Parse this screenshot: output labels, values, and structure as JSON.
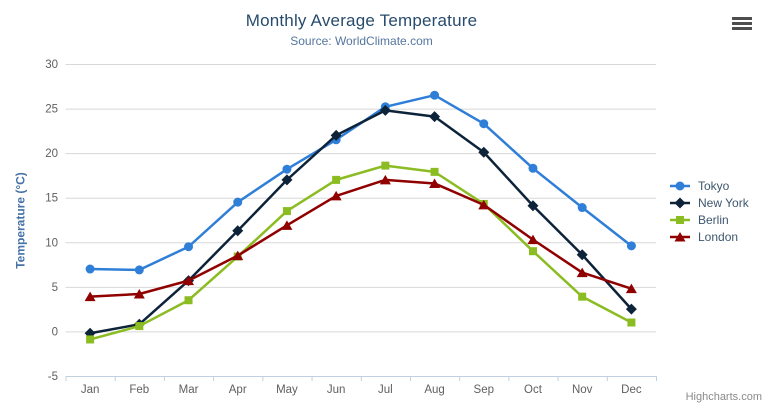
{
  "header": {
    "title": "Monthly Average Temperature",
    "subtitle": "Source: WorldClimate.com"
  },
  "toolbar": {
    "export_menu_icon": "hamburger-icon"
  },
  "credits": {
    "label": "Highcharts.com"
  },
  "colors": {
    "title_text": "#274b6d",
    "subtitle_text": "#55759e",
    "axis_label_text": "#606060",
    "yaxis_title_text": "#4572a7",
    "legend_text": "#3e576f",
    "grid_line": "#d8d8d8",
    "axis_line": "#c0d0e0",
    "credits_text": "#8a8a8a",
    "menu_icon": "#4d4d4d"
  },
  "chart_data": {
    "type": "line",
    "title": "Monthly Average Temperature",
    "subtitle": "Source: WorldClimate.com",
    "categories": [
      "Jan",
      "Feb",
      "Mar",
      "Apr",
      "May",
      "Jun",
      "Jul",
      "Aug",
      "Sep",
      "Oct",
      "Nov",
      "Dec"
    ],
    "xlabel": "",
    "ylabel": "Temperature (°C)",
    "ylim": [
      -5,
      30
    ],
    "yticks": [
      -5,
      0,
      5,
      10,
      15,
      20,
      25,
      30
    ],
    "grid": true,
    "legend_position": "right",
    "series": [
      {
        "name": "Tokyo",
        "color": "#2f7ed8",
        "marker": "circle",
        "values": [
          7.0,
          6.9,
          9.5,
          14.5,
          18.2,
          21.5,
          25.2,
          26.5,
          23.3,
          18.3,
          13.9,
          9.6
        ]
      },
      {
        "name": "New York",
        "color": "#0d233a",
        "marker": "diamond",
        "values": [
          -0.2,
          0.8,
          5.7,
          11.3,
          17.0,
          22.0,
          24.8,
          24.1,
          20.1,
          14.1,
          8.6,
          2.5
        ]
      },
      {
        "name": "Berlin",
        "color": "#8bbc21",
        "marker": "square",
        "values": [
          -0.9,
          0.6,
          3.5,
          8.4,
          13.5,
          17.0,
          18.6,
          17.9,
          14.3,
          9.0,
          3.9,
          1.0
        ]
      },
      {
        "name": "London",
        "color": "#910000",
        "marker": "triangle",
        "values": [
          3.9,
          4.2,
          5.7,
          8.5,
          11.9,
          15.2,
          17.0,
          16.6,
          14.2,
          10.3,
          6.6,
          4.8
        ]
      }
    ]
  }
}
